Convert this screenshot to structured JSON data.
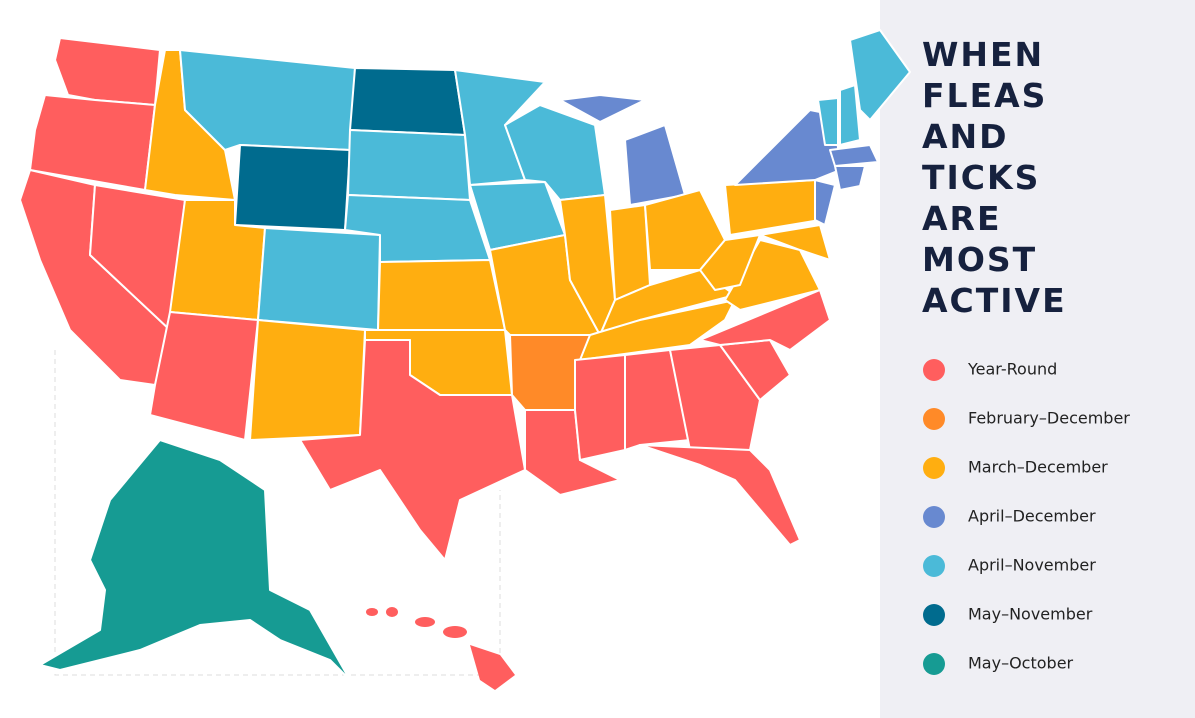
{
  "title": [
    "WHEN",
    "FLEAS",
    "AND",
    "TICKS",
    "ARE",
    "MOST",
    "ACTIVE"
  ],
  "legend": [
    {
      "label": "Year-Round",
      "color": "#ff5e5e"
    },
    {
      "label": "February–December",
      "color": "#ff8a28"
    },
    {
      "label": "March–December",
      "color": "#ffae10"
    },
    {
      "label": "April–December",
      "color": "#6889d0"
    },
    {
      "label": "April–November",
      "color": "#4bbad8"
    },
    {
      "label": "May–November",
      "color": "#006b8e"
    },
    {
      "label": "May–October",
      "color": "#169b93"
    }
  ]
}
